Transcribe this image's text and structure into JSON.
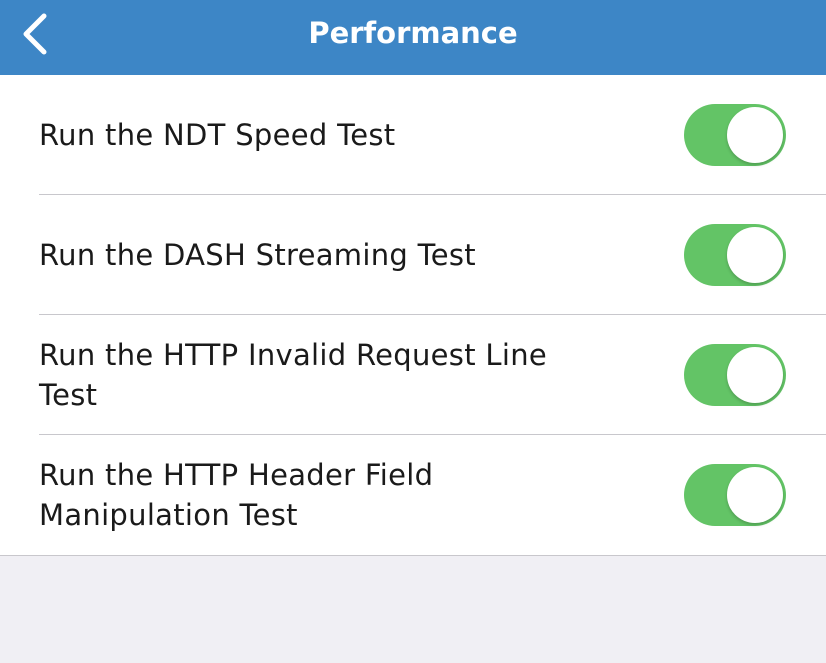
{
  "header": {
    "title": "Performance",
    "back_icon": "chevron-left-icon"
  },
  "colors": {
    "header": "#3d86c6",
    "toggle_on": "#63c466"
  },
  "settings": [
    {
      "label": "Run the NDT Speed Test",
      "enabled": true
    },
    {
      "label": "Run the DASH Streaming Test",
      "enabled": true
    },
    {
      "label": "Run the HTTP Invalid Request Line Test",
      "enabled": true
    },
    {
      "label": "Run the HTTP Header Field Manipulation Test",
      "enabled": true
    }
  ]
}
